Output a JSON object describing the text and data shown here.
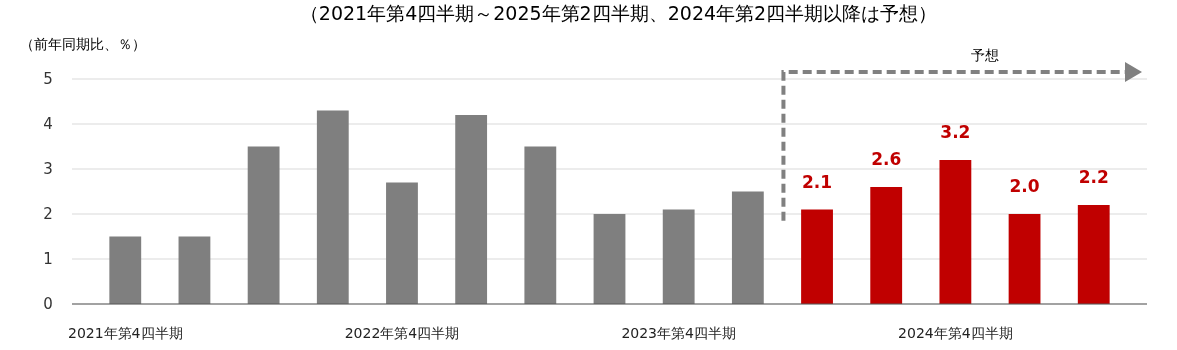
{
  "chart_data": {
    "type": "bar",
    "title": "（2021年第4四半期～2025年第2四半期、2024年第2四半期以降は予想）",
    "ylabel": "（前年同期比、％）",
    "categories": [
      "2021年第4四半期",
      null,
      null,
      null,
      "2022年第4四半期",
      null,
      null,
      null,
      "2023年第4四半期",
      null,
      null,
      null,
      "2024年第4四半期",
      null,
      null
    ],
    "values": [
      1.5,
      1.5,
      3.5,
      4.3,
      2.7,
      4.2,
      3.5,
      2.0,
      2.1,
      2.5,
      2.1,
      2.6,
      3.2,
      2.0,
      2.2
    ],
    "colors": [
      "#7f7f7f",
      "#7f7f7f",
      "#7f7f7f",
      "#7f7f7f",
      "#7f7f7f",
      "#7f7f7f",
      "#7f7f7f",
      "#7f7f7f",
      "#7f7f7f",
      "#7f7f7f",
      "#c00000",
      "#c00000",
      "#c00000",
      "#c00000",
      "#c00000"
    ],
    "value_labels": [
      null,
      null,
      null,
      null,
      null,
      null,
      null,
      null,
      null,
      null,
      "2.1",
      "2.6",
      "3.2",
      "2.0",
      "2.2"
    ],
    "ylim": [
      0,
      5
    ],
    "yticks": [
      0,
      1,
      2,
      3,
      4,
      5
    ],
    "grid": "y",
    "annotations": [
      "予想"
    ]
  }
}
